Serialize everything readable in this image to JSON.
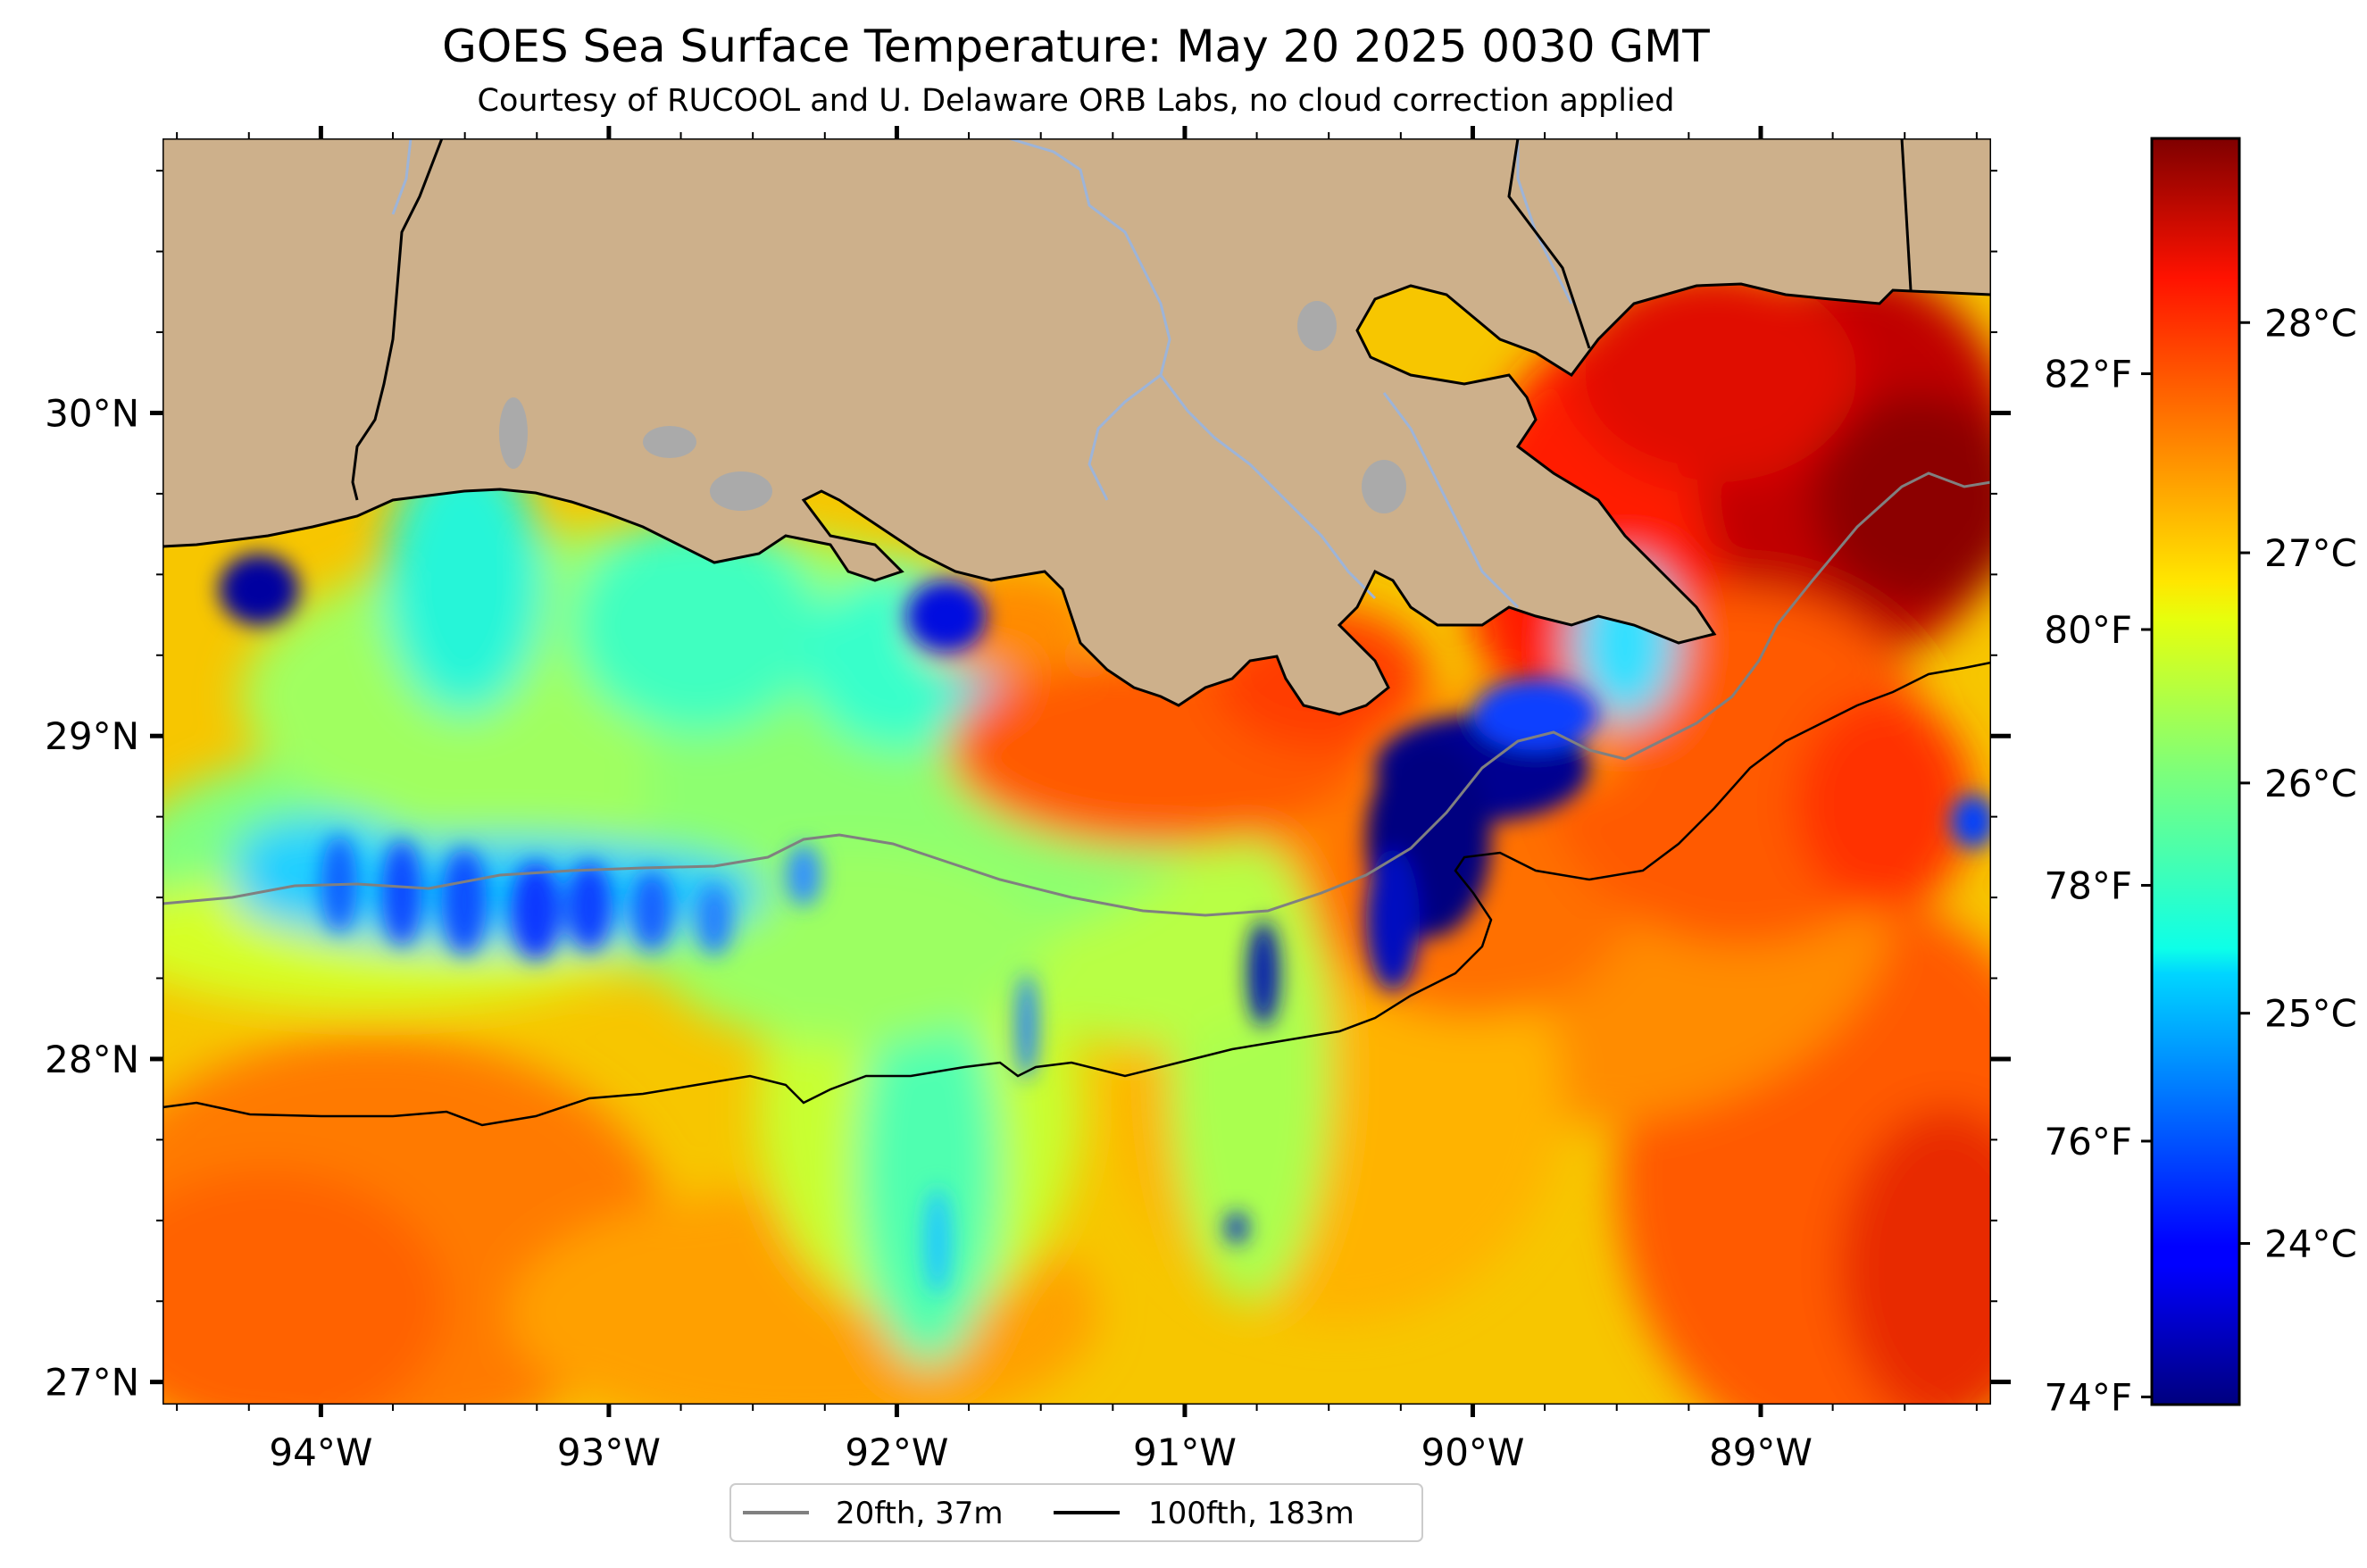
{
  "title": "GOES Sea Surface Temperature: May 20 2025 0030 GMT",
  "subtitle": "Courtesy of RUCOOL and U. Delaware ORB Labs, no cloud correction applied",
  "map": {
    "lon_range": [
      -94.55,
      -88.2
    ],
    "lat_range": [
      26.93,
      30.85
    ],
    "lon_ticks": [
      {
        "value": -94,
        "label": "94°W"
      },
      {
        "value": -93,
        "label": "93°W"
      },
      {
        "value": -92,
        "label": "92°W"
      },
      {
        "value": -91,
        "label": "91°W"
      },
      {
        "value": -90,
        "label": "90°W"
      },
      {
        "value": -89,
        "label": "89°W"
      }
    ],
    "lat_ticks": [
      {
        "value": 30,
        "label": "30°N"
      },
      {
        "value": 29,
        "label": "29°N"
      },
      {
        "value": 28,
        "label": "28°N"
      },
      {
        "value": 27,
        "label": "27°N"
      }
    ],
    "colors": {
      "land": "#cdb08b",
      "lakes": "#aaaaaa",
      "rivers": "#9db4d8",
      "coast": "#000000",
      "isobath_20": "#808080",
      "isobath_100": "#000000"
    }
  },
  "colorbar": {
    "colormap": "jet",
    "celsius_range": [
      23.3,
      28.8
    ],
    "celsius_ticks": [
      {
        "value": 24,
        "label": "24°C"
      },
      {
        "value": 25,
        "label": "25°C"
      },
      {
        "value": 26,
        "label": "26°C"
      },
      {
        "value": 27,
        "label": "27°C"
      },
      {
        "value": 28,
        "label": "28°C"
      }
    ],
    "fahrenheit_ticks": [
      {
        "value": 74,
        "label": "74°F"
      },
      {
        "value": 76,
        "label": "76°F"
      },
      {
        "value": 78,
        "label": "78°F"
      },
      {
        "value": 80,
        "label": "80°F"
      },
      {
        "value": 82,
        "label": "82°F"
      }
    ]
  },
  "legend": {
    "items": [
      {
        "label": "20fth, 37m",
        "color": "#808080"
      },
      {
        "label": "100fth, 183m",
        "color": "#000000"
      }
    ]
  }
}
